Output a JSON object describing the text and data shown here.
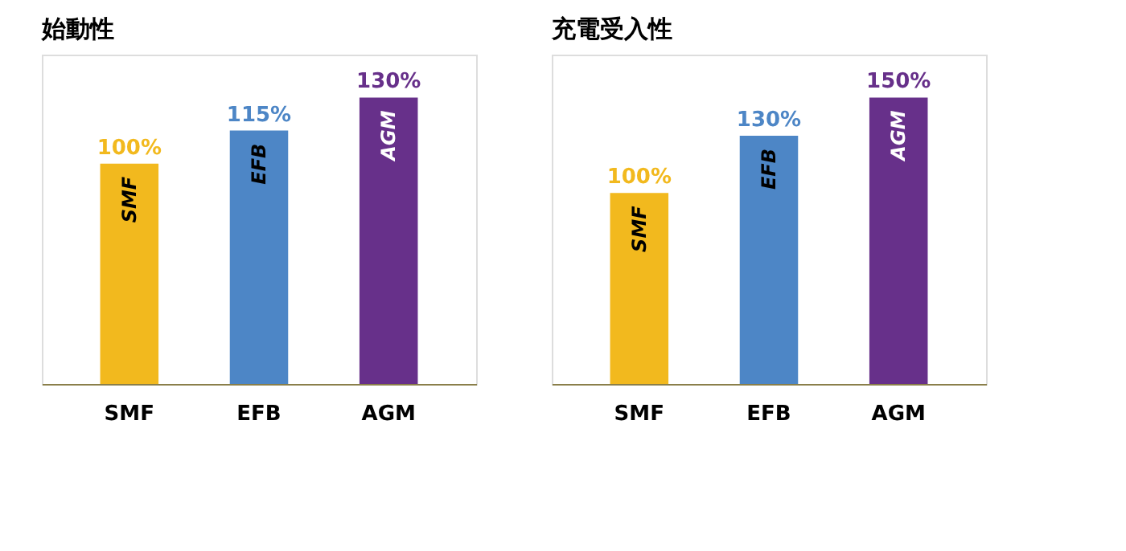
{
  "chart_data": [
    {
      "type": "bar",
      "title": "始動性",
      "categories": [
        "SMF",
        "EFB",
        "AGM"
      ],
      "values": [
        100,
        115,
        130
      ],
      "colors": [
        "#f2b91e",
        "#4d86c6",
        "#67308a"
      ],
      "value_labels": [
        "100%",
        "115%",
        "130%"
      ],
      "grid": false
    },
    {
      "type": "bar",
      "title": "充電受入性",
      "categories": [
        "SMF",
        "EFB",
        "AGM"
      ],
      "values": [
        100,
        130,
        150
      ],
      "colors": [
        "#f2b91e",
        "#4d86c6",
        "#67308a"
      ],
      "value_labels": [
        "100%",
        "130%",
        "150%"
      ],
      "grid": false
    }
  ]
}
